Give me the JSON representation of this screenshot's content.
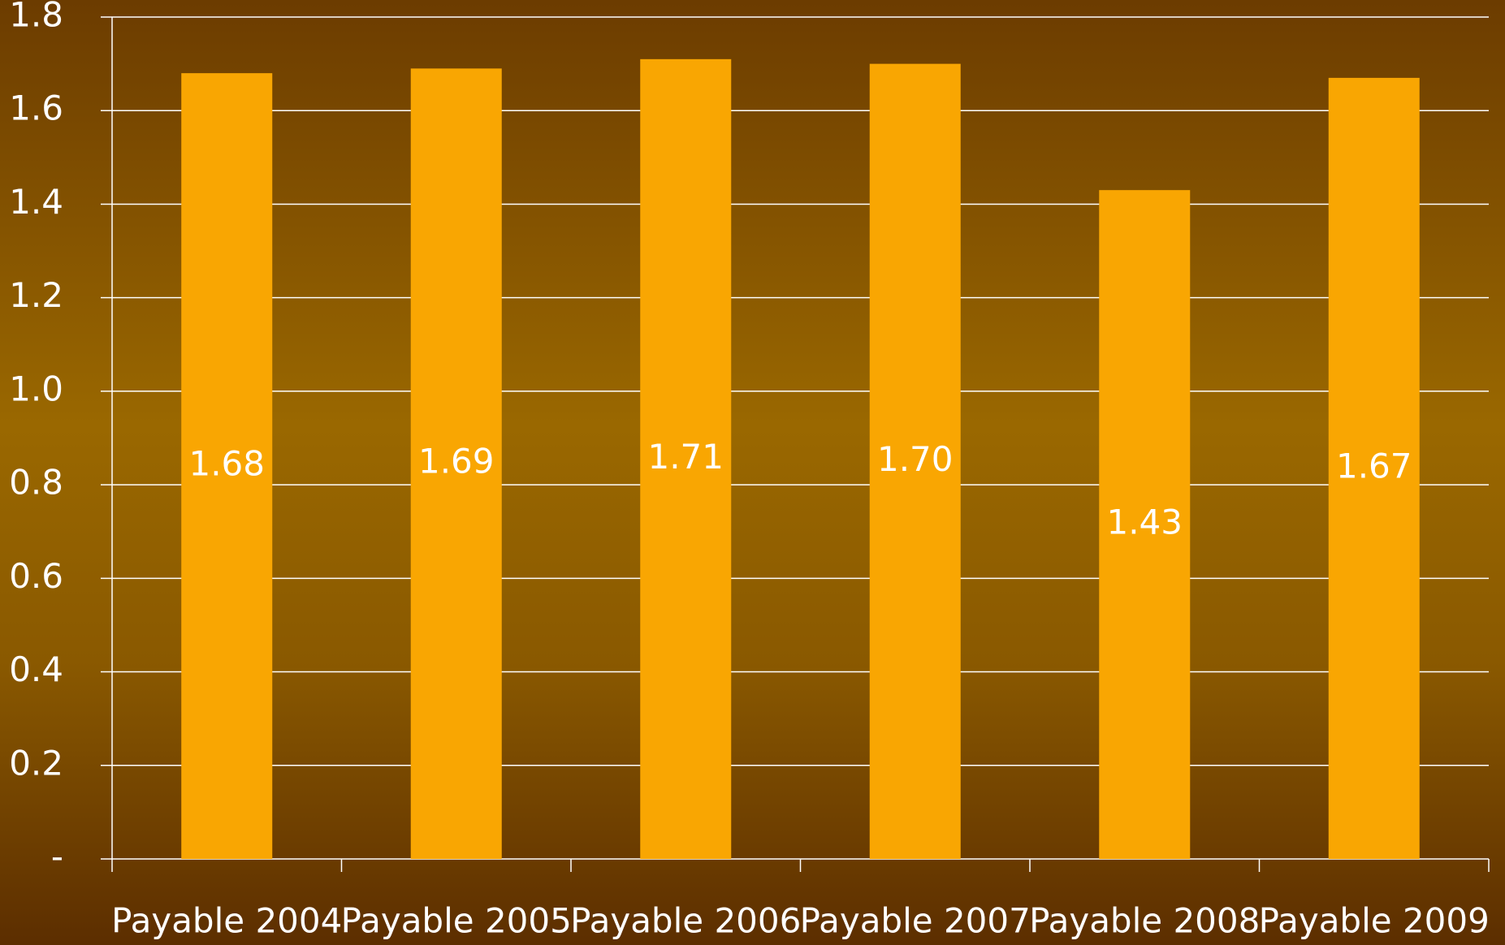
{
  "chart_data": {
    "type": "bar",
    "categories": [
      "Payable 2004",
      "Payable 2005",
      "Payable 2006",
      "Payable 2007",
      "Payable 2008",
      "Payable 2009"
    ],
    "values": [
      1.68,
      1.69,
      1.71,
      1.7,
      1.43,
      1.67
    ],
    "value_labels": [
      "1.68",
      "1.69",
      "1.71",
      "1.70",
      "1.43",
      "1.67"
    ],
    "color": "#f9a602",
    "ylim": [
      0,
      1.8
    ],
    "yticks": [
      {
        "value": 0,
        "label": "-"
      },
      0.2,
      0.4,
      0.6,
      0.8,
      {
        "value": 1,
        "label": "1.0"
      },
      1.2,
      1.4,
      1.6,
      1.8
    ],
    "grid": true
  }
}
